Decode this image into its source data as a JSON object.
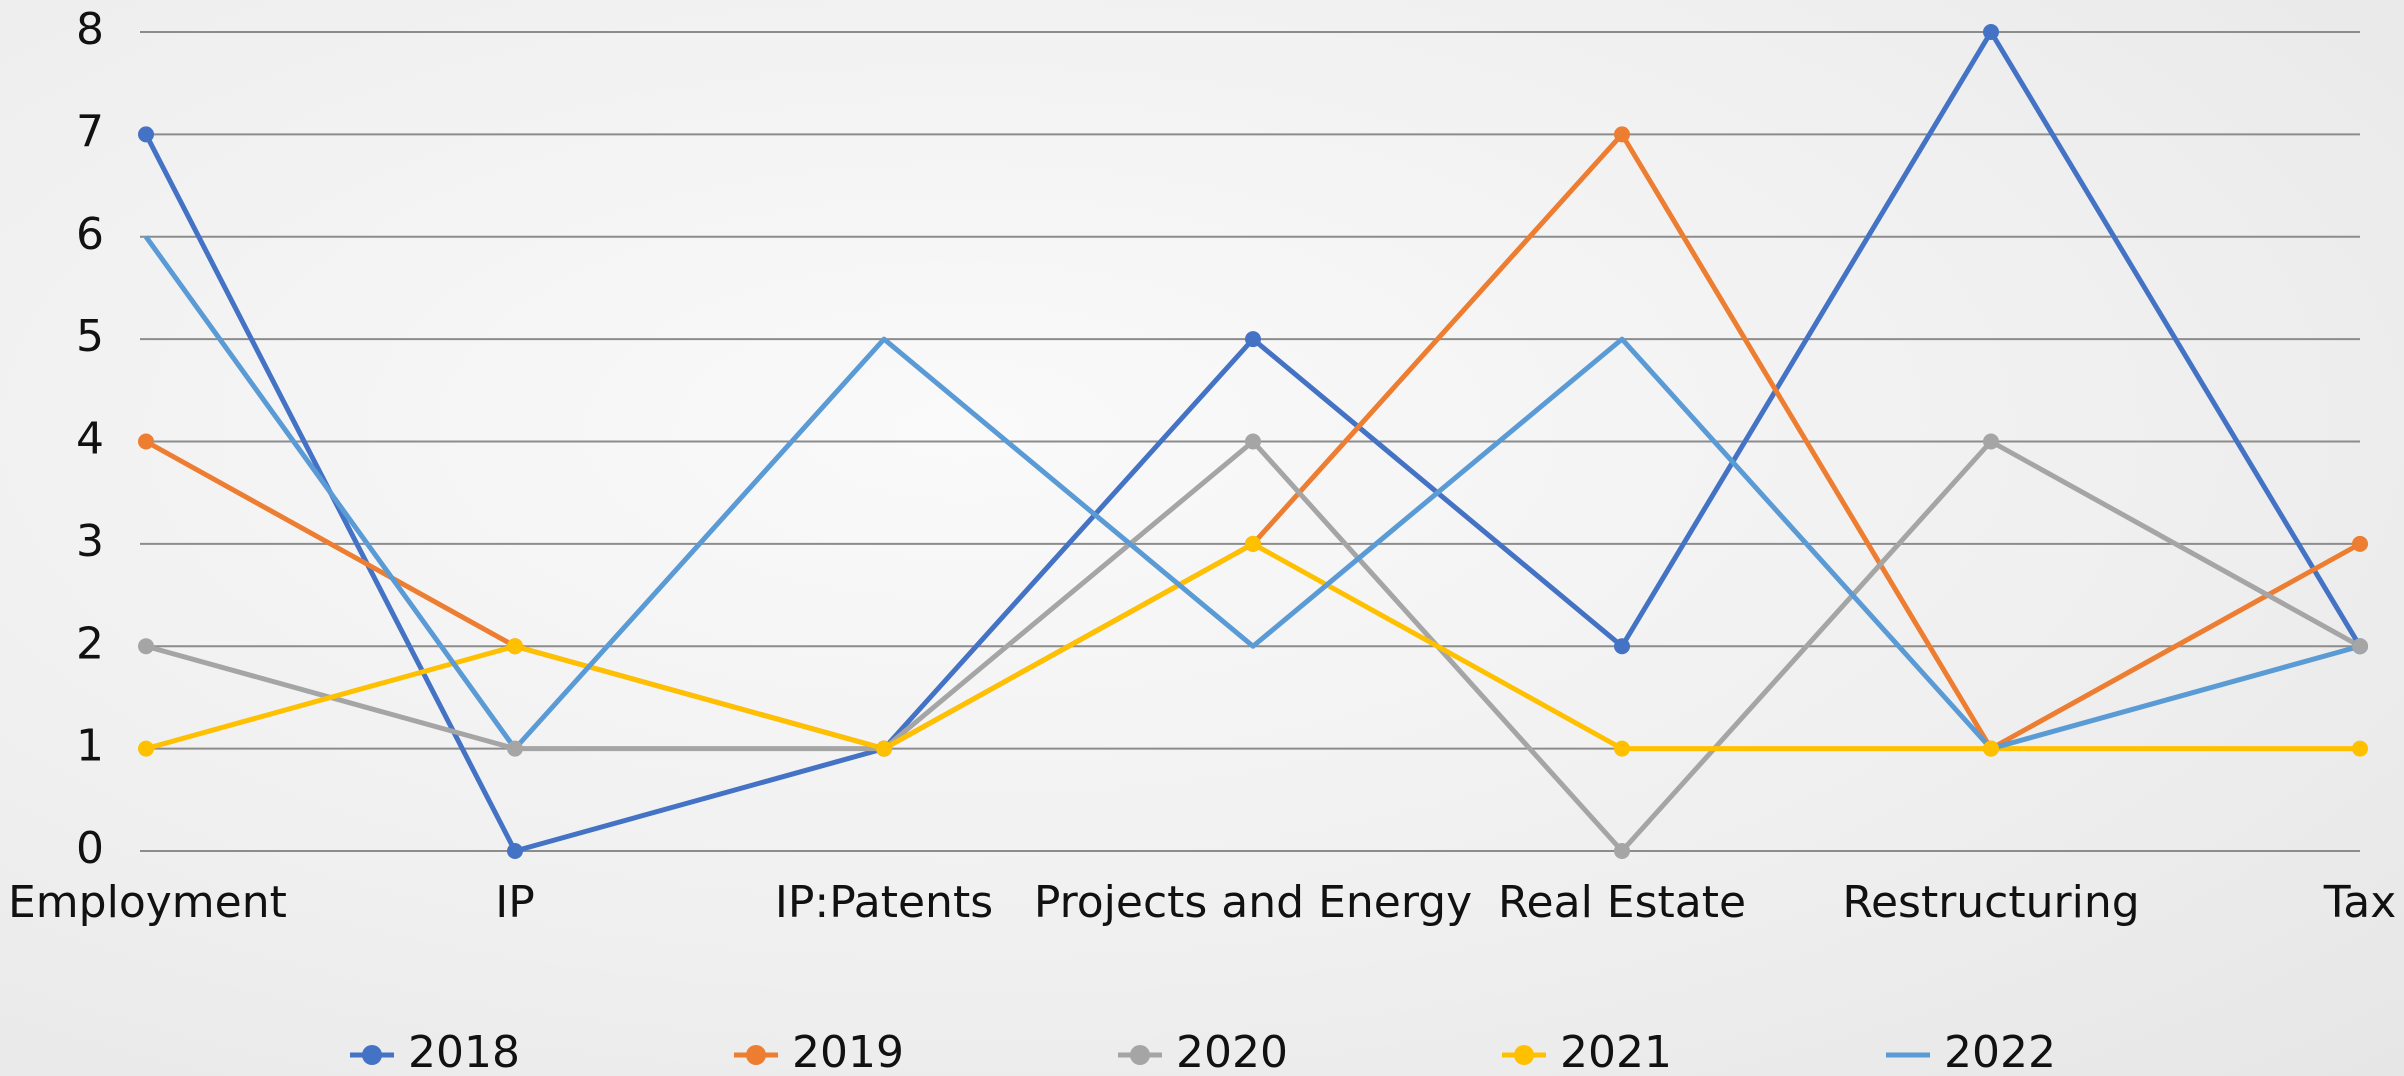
{
  "chart_data": {
    "type": "line",
    "categories": [
      "Employment",
      "IP",
      "IP:Patents",
      "Projects and Energy",
      "Real Estate",
      "Restructuring",
      "Tax"
    ],
    "series": [
      {
        "name": "2018",
        "color": "#4472c4",
        "markers": true,
        "values": [
          7,
          0,
          1,
          5,
          2,
          8,
          2
        ]
      },
      {
        "name": "2019",
        "color": "#ed7d31",
        "markers": true,
        "values": [
          4,
          2,
          1,
          3,
          7,
          1,
          3
        ]
      },
      {
        "name": "2020",
        "color": "#a5a5a5",
        "markers": true,
        "values": [
          2,
          1,
          1,
          4,
          0,
          4,
          2
        ]
      },
      {
        "name": "2021",
        "color": "#ffc000",
        "markers": true,
        "values": [
          1,
          2,
          1,
          3,
          1,
          1,
          1
        ]
      },
      {
        "name": "2022",
        "color": "#5b9bd5",
        "markers": false,
        "values": [
          6,
          1,
          5,
          2,
          5,
          1,
          2
        ]
      }
    ],
    "ylim": [
      0,
      8
    ],
    "yticks": [
      0,
      1,
      2,
      3,
      4,
      5,
      6,
      7,
      8
    ],
    "grid": true,
    "legend": "bottom"
  }
}
